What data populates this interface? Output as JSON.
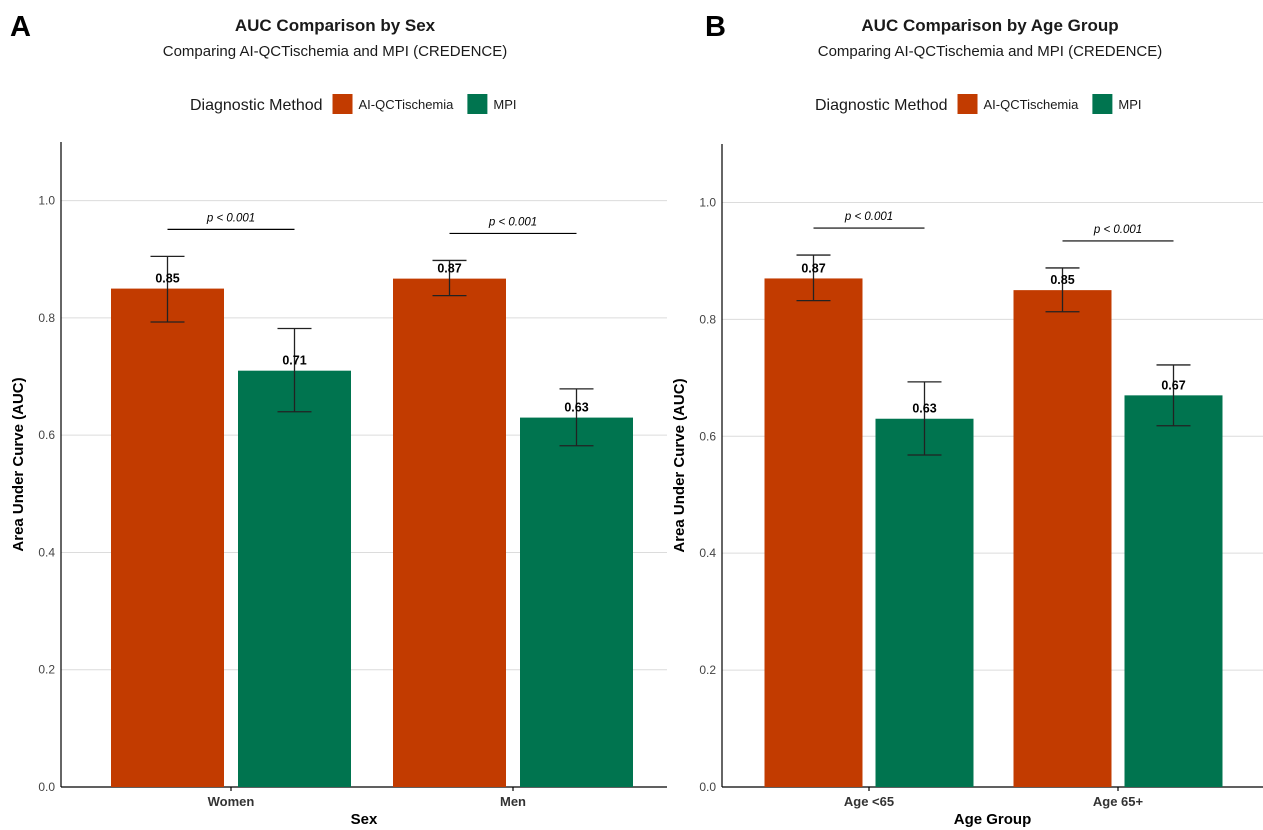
{
  "chart_data": [
    {
      "type": "bar",
      "panel": "A",
      "title": "AUC Comparison by Sex",
      "subtitle": "Comparing AI-QCTischemia and MPI (CREDENCE)",
      "legend": {
        "title": "Diagnostic Method",
        "position": "top"
      },
      "xlabel": "Sex",
      "ylabel": "Area Under Curve (AUC)",
      "ylim": [
        0,
        1.1
      ],
      "yticks": [
        "0.0",
        "0.2",
        "0.4",
        "0.6",
        "0.8",
        "1.0"
      ],
      "grid": true,
      "categories": [
        "Women",
        "Men"
      ],
      "series": [
        {
          "name": "AI-QCTischemia",
          "color": "#C23B00",
          "values": [
            0.85,
            0.867
          ],
          "labels": [
            "0.85",
            "0.87"
          ],
          "ci_low": [
            0.793,
            0.838
          ],
          "ci_high": [
            0.905,
            0.898
          ]
        },
        {
          "name": "MPI",
          "color": "#00744F",
          "values": [
            0.71,
            0.63
          ],
          "labels": [
            "0.71",
            "0.63"
          ],
          "ci_low": [
            0.64,
            0.582
          ],
          "ci_high": [
            0.782,
            0.679
          ]
        }
      ],
      "annotations": [
        "p < 0.001",
        "p < 0.001"
      ]
    },
    {
      "type": "bar",
      "panel": "B",
      "title": "AUC Comparison by Age Group",
      "subtitle": "Comparing AI-QCTischemia and MPI (CREDENCE)",
      "legend": {
        "title": "Diagnostic Method",
        "position": "top"
      },
      "xlabel": "Age Group",
      "ylabel": "Area Under Curve (AUC)",
      "ylim": [
        0,
        1.1
      ],
      "yticks": [
        "0.0",
        "0.2",
        "0.4",
        "0.6",
        "0.8",
        "1.0"
      ],
      "grid": true,
      "categories": [
        "Age <65",
        "Age 65+"
      ],
      "series": [
        {
          "name": "AI-QCTischemia",
          "color": "#C23B00",
          "values": [
            0.87,
            0.85
          ],
          "labels": [
            "0.87",
            "0.85"
          ],
          "ci_low": [
            0.832,
            0.813
          ],
          "ci_high": [
            0.91,
            0.888
          ]
        },
        {
          "name": "MPI",
          "color": "#00744F",
          "values": [
            0.63,
            0.67
          ],
          "labels": [
            "0.63",
            "0.67"
          ],
          "ci_low": [
            0.568,
            0.618
          ],
          "ci_high": [
            0.693,
            0.722
          ]
        }
      ],
      "annotations": [
        "p < 0.001",
        "p < 0.001"
      ]
    }
  ]
}
